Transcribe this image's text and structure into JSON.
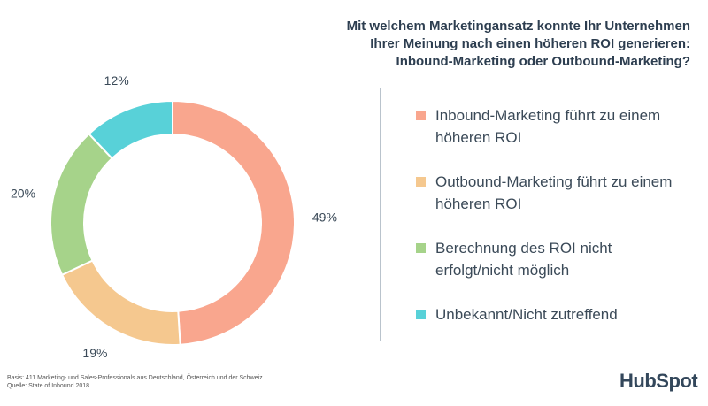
{
  "chart_data": {
    "type": "donut",
    "title": [
      "Mit welchem Marketingansatz konnte Ihr Unternehmen",
      "Ihrer Meinung nach einen höheren ROI generieren:",
      "Inbound-Marketing oder Outbound-Marketing?"
    ],
    "categories": [
      "Inbound-Marketing führt zu einem höheren ROI",
      "Outbound-Marketing führt zu einem höheren ROI",
      "Berechnung des ROI nicht erfolgt/nicht möglich",
      "Unbekannt/Nicht zutreffend"
    ],
    "values": [
      49,
      19,
      20,
      12
    ],
    "value_labels": [
      "49%",
      "19%",
      "20%",
      "12%"
    ],
    "colors": [
      "#f9a68e",
      "#f5c88f",
      "#a6d38a",
      "#58d1d8"
    ],
    "footnote": [
      "Basis: 411 Marketing- und Sales-Professionals aus Deutschland, Österreich und der Schweiz",
      "Quelle: State of Inbound 2018"
    ],
    "logo": "HubSpot"
  }
}
